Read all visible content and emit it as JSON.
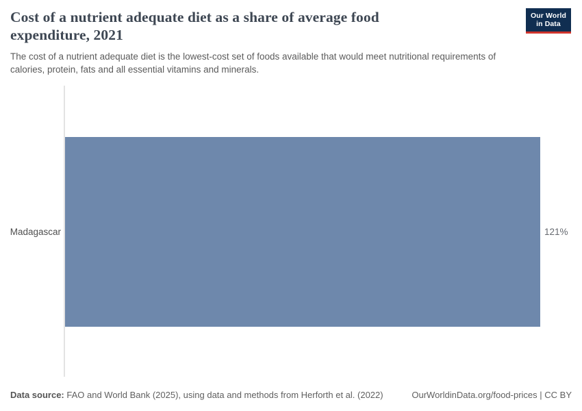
{
  "header": {
    "title": "Cost of a nutrient adequate diet as a share of average food\nexpenditure, 2021",
    "subtitle": "The cost of a nutrient adequate diet is the lowest-cost set of foods available that would meet nutritional requirements of\ncalories, protein, fats and all essential vitamins and minerals.",
    "logo": {
      "line1": "Our World",
      "line2": "in Data"
    }
  },
  "chart_data": {
    "type": "bar",
    "orientation": "horizontal",
    "title": "Cost of a nutrient adequate diet as a share of average food expenditure, 2021",
    "year": "2021",
    "categories": [
      "Madagascar"
    ],
    "values": [
      121
    ],
    "value_labels": [
      "121%"
    ],
    "xlim": [
      0,
      121
    ],
    "xlabel": "",
    "ylabel": "",
    "grid": false,
    "legend_position": "none",
    "bar_color": "#6e88ac",
    "axis_line_color": "#e3e3e3"
  },
  "footer": {
    "datasource_label": "Data source:",
    "datasource_text": " FAO and World Bank (2025), using data and methods from Herforth et al. (2022)",
    "link_text": "OurWorldinData.org/food-prices | CC BY"
  },
  "colors": {
    "title": "#3e4753",
    "subtitle": "#5b5b5b",
    "logo_navy": "#102e51",
    "logo_red": "#d0342c",
    "bar": "#6e88ac"
  }
}
